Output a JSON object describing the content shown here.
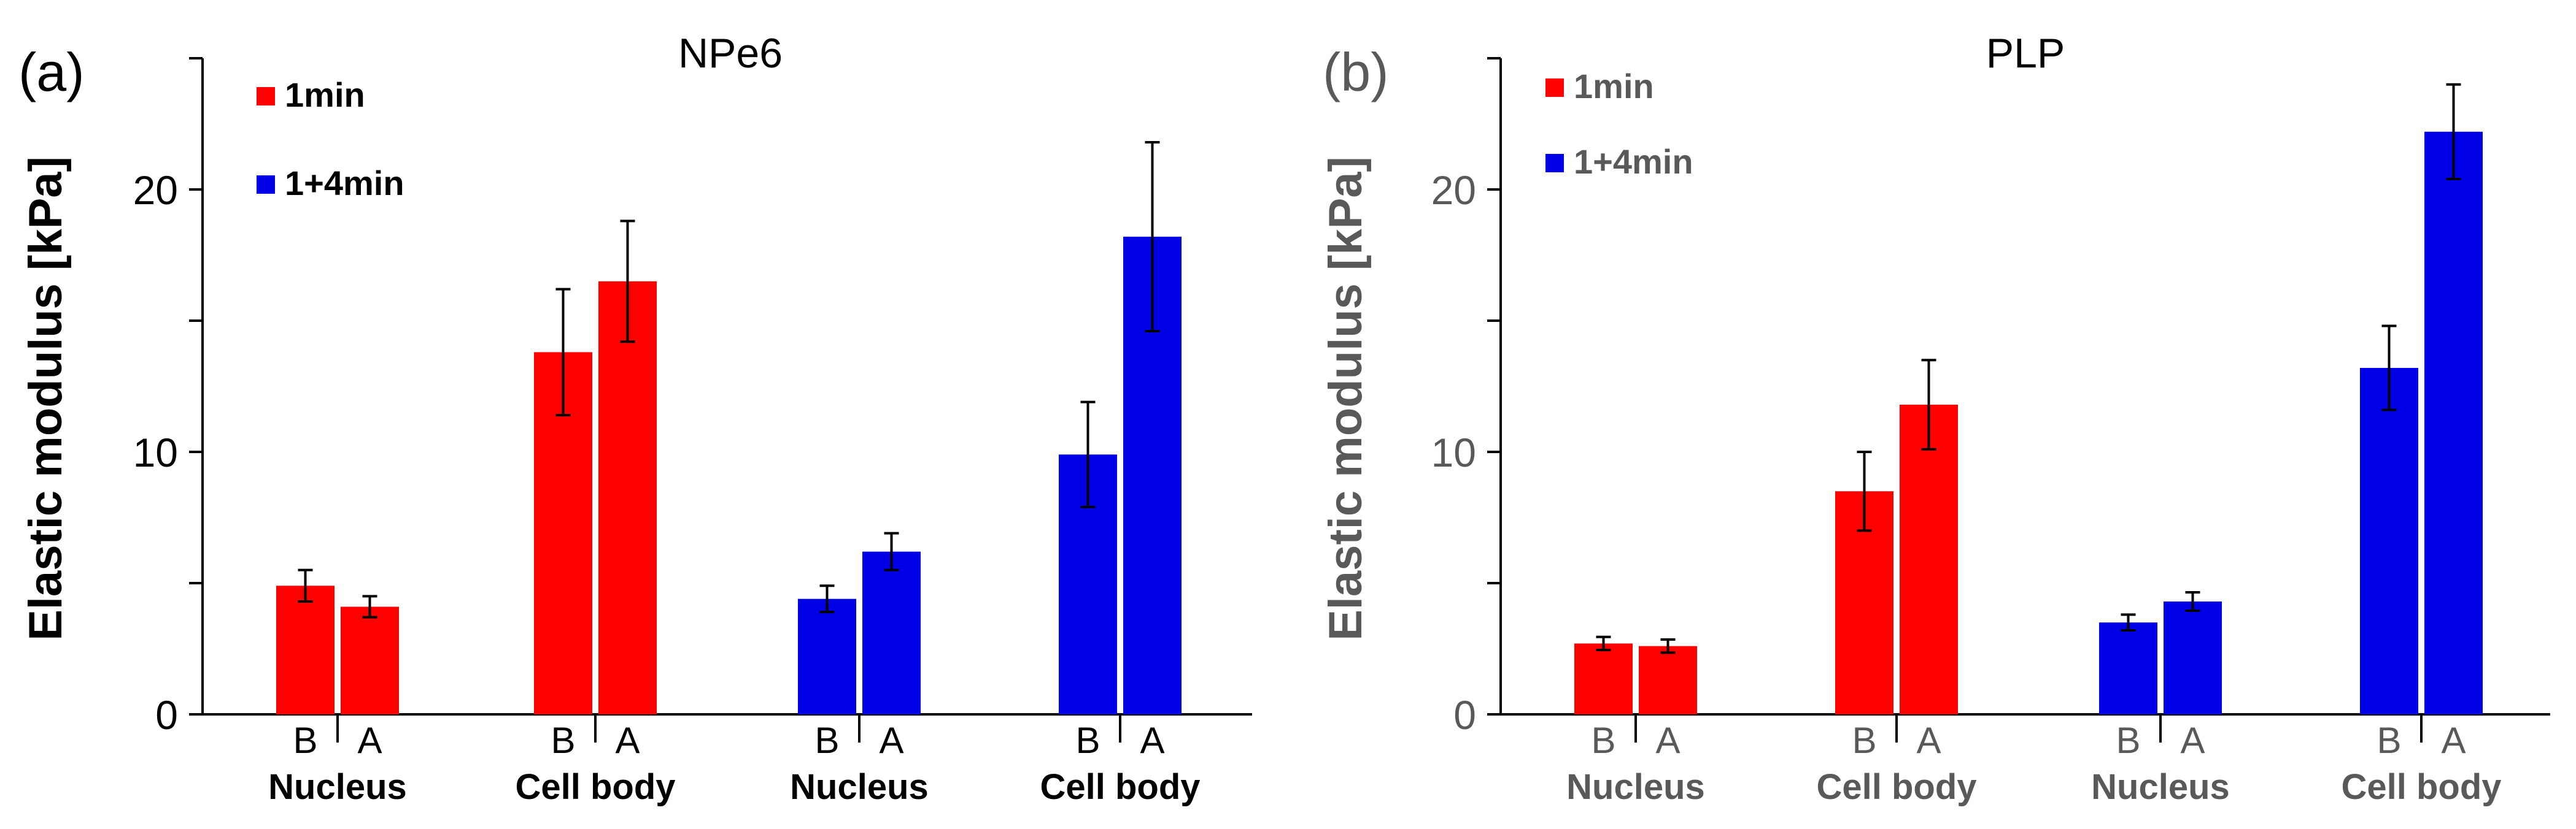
{
  "chart_data": [
    {
      "type": "bar",
      "panel_label": "(a)",
      "title": "NPe6",
      "ylabel": "Elastic modulus [kPa]",
      "ylim": [
        0,
        25
      ],
      "yticks": [
        0,
        10,
        20
      ],
      "text_color": "#000000",
      "legend": [
        {
          "name": "1min",
          "color": "#ff0000"
        },
        {
          "name": "1+4min",
          "color": "#0000e6"
        }
      ],
      "groups": [
        {
          "label": "Nucleus",
          "series": "1min",
          "bars": [
            {
              "label": "B",
              "value": 4.9,
              "error": 0.6
            },
            {
              "label": "A",
              "value": 4.1,
              "error": 0.4
            }
          ]
        },
        {
          "label": "Cell body",
          "series": "1min",
          "bars": [
            {
              "label": "B",
              "value": 13.8,
              "error": 2.4
            },
            {
              "label": "A",
              "value": 16.5,
              "error": 2.3
            }
          ]
        },
        {
          "label": "Nucleus",
          "series": "1+4min",
          "bars": [
            {
              "label": "B",
              "value": 4.4,
              "error": 0.5
            },
            {
              "label": "A",
              "value": 6.2,
              "error": 0.7
            }
          ]
        },
        {
          "label": "Cell body",
          "series": "1+4min",
          "bars": [
            {
              "label": "B",
              "value": 9.9,
              "error": 2.0
            },
            {
              "label": "A",
              "value": 18.2,
              "error": 3.6
            }
          ]
        }
      ]
    },
    {
      "type": "bar",
      "panel_label": "(b)",
      "title": "PLP",
      "ylabel": "Elastic modulus [kPa]",
      "ylim": [
        0,
        25
      ],
      "yticks": [
        0,
        10,
        20
      ],
      "text_color": "#595959",
      "legend": [
        {
          "name": "1min",
          "color": "#ff0000"
        },
        {
          "name": "1+4min",
          "color": "#0000e6"
        }
      ],
      "groups": [
        {
          "label": "Nucleus",
          "series": "1min",
          "bars": [
            {
              "label": "B",
              "value": 2.7,
              "error": 0.25
            },
            {
              "label": "A",
              "value": 2.6,
              "error": 0.25
            }
          ]
        },
        {
          "label": "Cell body",
          "series": "1min",
          "bars": [
            {
              "label": "B",
              "value": 8.5,
              "error": 1.5
            },
            {
              "label": "A",
              "value": 11.8,
              "error": 1.7
            }
          ]
        },
        {
          "label": "Nucleus",
          "series": "1+4min",
          "bars": [
            {
              "label": "B",
              "value": 3.5,
              "error": 0.3
            },
            {
              "label": "A",
              "value": 4.3,
              "error": 0.35
            }
          ]
        },
        {
          "label": "Cell body",
          "series": "1+4min",
          "bars": [
            {
              "label": "B",
              "value": 13.2,
              "error": 1.6
            },
            {
              "label": "A",
              "value": 22.2,
              "error": 1.8
            }
          ]
        }
      ]
    }
  ]
}
